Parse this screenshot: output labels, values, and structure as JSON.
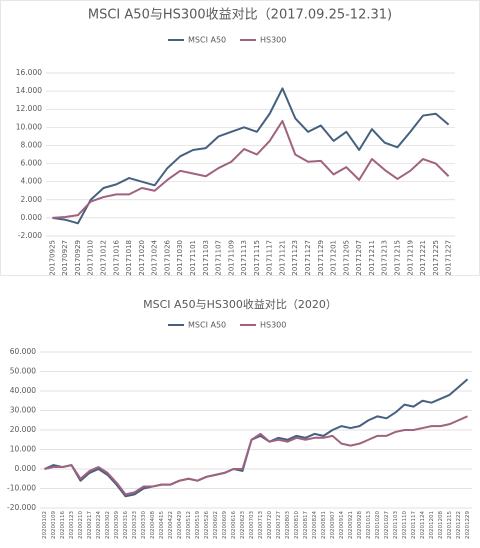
{
  "chart_data": [
    {
      "type": "line",
      "title": "MSCI A50与HS300收益对比（2017.09.25-12.31)",
      "categories": [
        "20170925",
        "20170927",
        "20170929",
        "20171010",
        "20171012",
        "20171016",
        "20171018",
        "20171020",
        "20171024",
        "20171026",
        "20171030",
        "20171101",
        "20171103",
        "20171107",
        "20171109",
        "20171113",
        "20171115",
        "20171117",
        "20171121",
        "20171123",
        "20171127",
        "20171129",
        "20171201",
        "20171205",
        "20171207",
        "20171211",
        "20171213",
        "20171215",
        "20171219",
        "20171221",
        "20171225",
        "20171227"
      ],
      "series": [
        {
          "name": "MSCI A50",
          "color": "#46617f",
          "values": [
            0,
            -0.2,
            -0.6,
            2.0,
            3.3,
            3.7,
            4.4,
            4.0,
            3.6,
            5.5,
            6.8,
            7.5,
            7.7,
            9.0,
            9.5,
            10.0,
            9.5,
            11.5,
            14.3,
            11.0,
            9.5,
            10.2,
            8.5,
            9.5,
            7.5,
            9.8,
            8.3,
            7.8,
            9.5,
            11.3,
            11.5,
            10.3
          ]
        },
        {
          "name": "HS300",
          "color": "#a0627e",
          "values": [
            0,
            0.1,
            0.3,
            1.8,
            2.3,
            2.6,
            2.6,
            3.3,
            3.0,
            4.2,
            5.2,
            4.9,
            4.6,
            5.5,
            6.2,
            7.6,
            7.0,
            8.5,
            10.7,
            7.0,
            6.2,
            6.3,
            4.8,
            5.6,
            4.2,
            6.5,
            5.3,
            4.3,
            5.2,
            6.5,
            6.0,
            4.6
          ]
        }
      ],
      "ylim": [
        -2,
        16
      ],
      "yticks": [
        {
          "value": -2,
          "label": "-2.000"
        },
        {
          "value": 0,
          "label": "0.000"
        },
        {
          "value": 2,
          "label": "2.000"
        },
        {
          "value": 4,
          "label": "4.000"
        },
        {
          "value": 6,
          "label": "6.000"
        },
        {
          "value": 8,
          "label": "8.000"
        },
        {
          "value": 10,
          "label": "10.000"
        },
        {
          "value": 12,
          "label": "12.000"
        },
        {
          "value": 14,
          "label": "14.000"
        },
        {
          "value": 16,
          "label": "16.000"
        }
      ],
      "grid": true,
      "legend": "top"
    },
    {
      "type": "line",
      "title": "MSCI A50与HS300收益对比（2020）",
      "categories": [
        "20200102",
        "20200109",
        "20200116",
        "20200123",
        "20200210",
        "20200217",
        "20200224",
        "20200302",
        "20200309",
        "20200316",
        "20200323",
        "20200330",
        "20200408",
        "20200415",
        "20200422",
        "20200429",
        "20200512",
        "20200519",
        "20200526",
        "20200602",
        "20200609",
        "20200616",
        "20200623",
        "20200703",
        "20200713",
        "20200720",
        "20200727",
        "20200803",
        "20200810",
        "20200817",
        "20200824",
        "20200831",
        "20200907",
        "20200914",
        "20200921",
        "20200928",
        "20201013",
        "20201020",
        "20201027",
        "20201103",
        "20201110",
        "20201117",
        "20201124",
        "20201201",
        "20201208",
        "20201215",
        "20201222",
        "20201229"
      ],
      "series": [
        {
          "name": "MSCI A50",
          "color": "#46617f",
          "values": [
            0,
            2,
            1,
            2,
            -6,
            -2,
            0,
            -3,
            -8,
            -14,
            -13,
            -10,
            -9,
            -8,
            -8,
            -6,
            -5,
            -6,
            -4,
            -3,
            -2,
            0,
            -1,
            15,
            17,
            14,
            16,
            15,
            17,
            16,
            18,
            17,
            20,
            22,
            21,
            22,
            25,
            27,
            26,
            29,
            33,
            32,
            35,
            34,
            36,
            38,
            42,
            46
          ]
        },
        {
          "name": "HS300",
          "color": "#a0627e",
          "values": [
            0,
            1,
            1,
            2,
            -5,
            -1,
            1,
            -2,
            -7,
            -13,
            -12,
            -9,
            -9,
            -8,
            -8,
            -6,
            -5,
            -6,
            -4,
            -3,
            -2,
            0,
            0,
            15,
            18,
            14,
            15,
            14,
            16,
            15,
            16,
            16,
            17,
            13,
            12,
            13,
            15,
            17,
            17,
            19,
            20,
            20,
            21,
            22,
            22,
            23,
            25,
            27
          ]
        }
      ],
      "ylim": [
        -20,
        60
      ],
      "yticks": [
        {
          "value": -20,
          "label": "-20.000"
        },
        {
          "value": -10,
          "label": "-10.000"
        },
        {
          "value": 0,
          "label": "0.000"
        },
        {
          "value": 10,
          "label": "10.000"
        },
        {
          "value": 20,
          "label": "20.000"
        },
        {
          "value": 30,
          "label": "30.000"
        },
        {
          "value": 40,
          "label": "40.000"
        },
        {
          "value": 50,
          "label": "50.000"
        },
        {
          "value": 60,
          "label": "60.000"
        }
      ],
      "grid": true,
      "legend": "top"
    }
  ]
}
